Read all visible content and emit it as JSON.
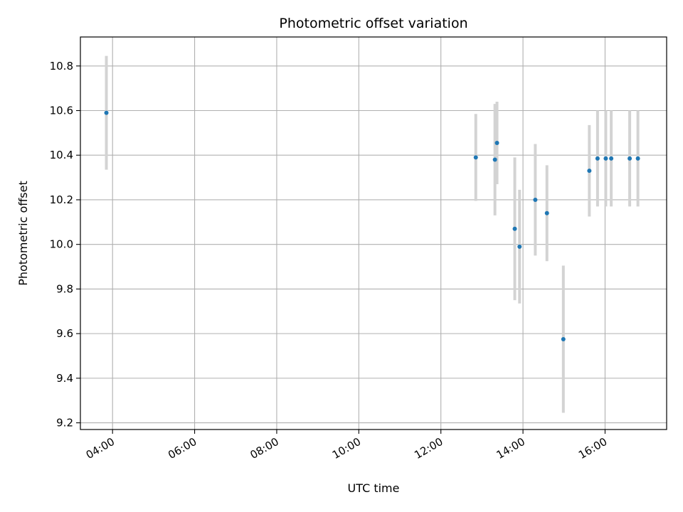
{
  "chart_data": {
    "type": "scatter",
    "title": "Photometric offset variation",
    "xlabel": "UTC time",
    "ylabel": "Photometric offset",
    "x_ticks": [
      "04:00",
      "06:00",
      "08:00",
      "10:00",
      "12:00",
      "14:00",
      "16:00"
    ],
    "y_ticks": [
      "9.2",
      "9.4",
      "9.6",
      "9.8",
      "10.0",
      "10.2",
      "10.4",
      "10.6",
      "10.8"
    ],
    "xlim": [
      "03:13",
      "17:30"
    ],
    "ylim": [
      9.17,
      10.93
    ],
    "grid": true,
    "colors": {
      "points": "#1f77b4",
      "errorbars": "#d3d3d3",
      "grid": "#b0b0b0"
    },
    "series": [
      {
        "points": [
          {
            "x": "03:51",
            "y": 10.59,
            "yerr": 0.255
          },
          {
            "x": "12:51",
            "y": 10.39,
            "yerr": 0.195
          },
          {
            "x": "13:19",
            "y": 10.38,
            "yerr": 0.25
          },
          {
            "x": "13:22",
            "y": 10.455,
            "yerr": 0.185
          },
          {
            "x": "13:48",
            "y": 10.07,
            "yerr": 0.32
          },
          {
            "x": "13:55",
            "y": 9.99,
            "yerr": 0.255
          },
          {
            "x": "14:18",
            "y": 10.2,
            "yerr": 0.25
          },
          {
            "x": "14:35",
            "y": 10.14,
            "yerr": 0.215
          },
          {
            "x": "14:59",
            "y": 9.575,
            "yerr": 0.33
          },
          {
            "x": "15:37",
            "y": 10.33,
            "yerr": 0.205
          },
          {
            "x": "15:49",
            "y": 10.385,
            "yerr": 0.215
          },
          {
            "x": "16:01",
            "y": 10.385,
            "yerr": 0.215
          },
          {
            "x": "16:09",
            "y": 10.385,
            "yerr": 0.215
          },
          {
            "x": "16:36",
            "y": 10.385,
            "yerr": 0.215
          },
          {
            "x": "16:48",
            "y": 10.385,
            "yerr": 0.215
          }
        ]
      }
    ]
  }
}
